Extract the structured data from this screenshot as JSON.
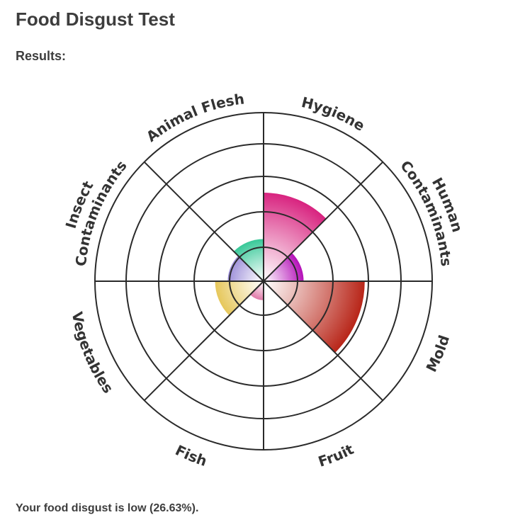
{
  "page": {
    "title": "Food Disgust Test",
    "subtitle": "Results:",
    "result_text": "Your food disgust is low (26.63%)."
  },
  "chart_data": {
    "type": "polar-area",
    "max": 4,
    "rings": 5,
    "categories": [
      {
        "name": "Hygiene",
        "label_lines": [
          "Hygiene"
        ],
        "value": 2.1,
        "color": "#d8237f"
      },
      {
        "name": "Human Contaminants",
        "label_lines": [
          "Human",
          "Contaminants"
        ],
        "value": 0.95,
        "color": "#b410b8"
      },
      {
        "name": "Mold",
        "label_lines": [
          "Mold"
        ],
        "value": 2.4,
        "color": "#b82518"
      },
      {
        "name": "Fruit",
        "label_lines": [
          "Fruit"
        ],
        "value": 0.0,
        "color": "#c86a80"
      },
      {
        "name": "Fish",
        "label_lines": [
          "Fish"
        ],
        "value": 0.45,
        "color": "#e07aa8"
      },
      {
        "name": "Vegetables",
        "label_lines": [
          "Vegetables"
        ],
        "value": 1.15,
        "color": "#e6c75a"
      },
      {
        "name": "Insect Contaminants",
        "label_lines": [
          "Insect",
          "Contaminants"
        ],
        "value": 0.85,
        "color": "#9c8ed8"
      },
      {
        "name": "Animal Flesh",
        "label_lines": [
          "Animal Flesh"
        ],
        "value": 1.0,
        "color": "#38c898"
      }
    ]
  }
}
